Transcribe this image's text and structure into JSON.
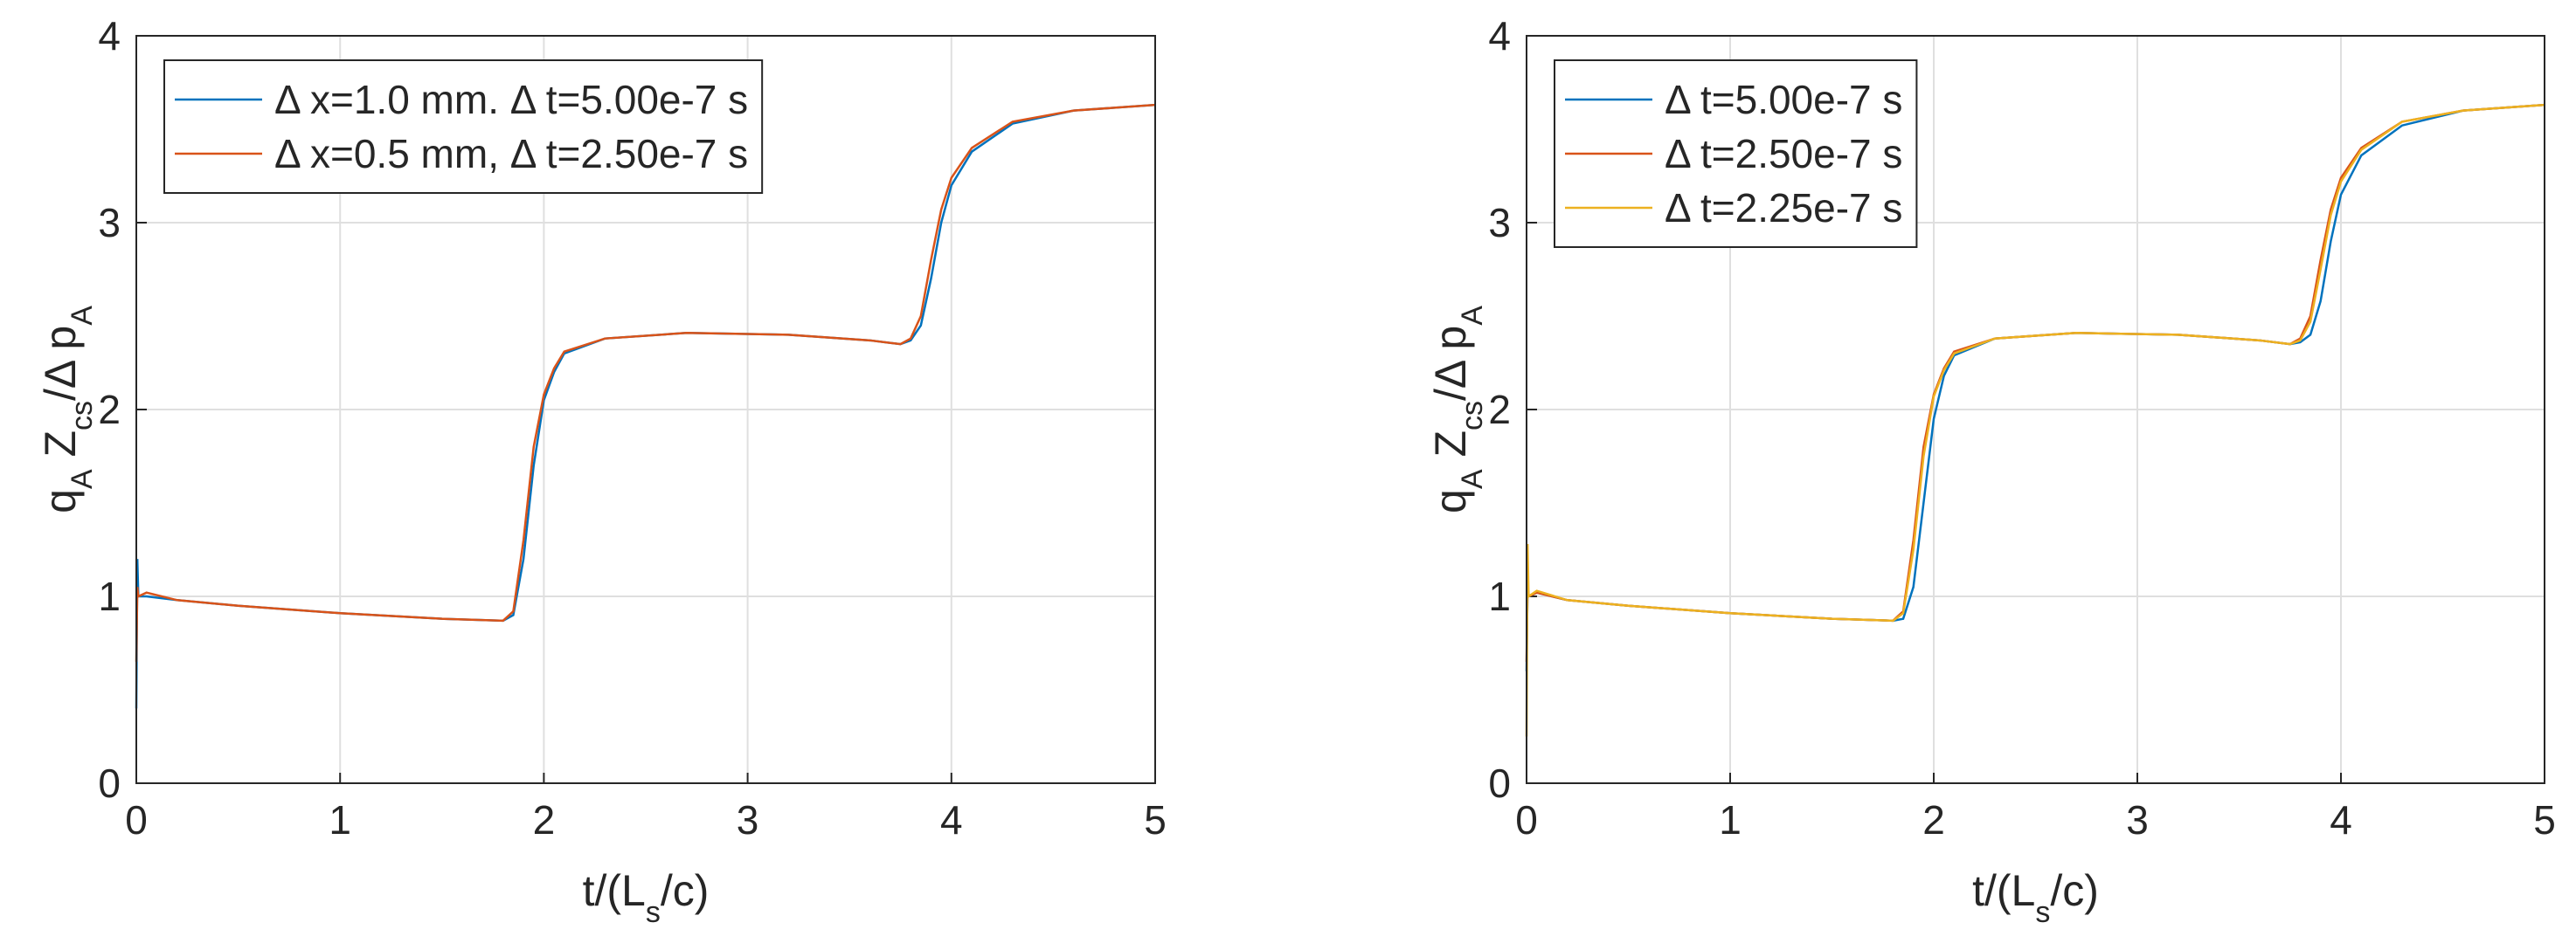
{
  "chart_data": [
    {
      "type": "line",
      "xlabel": [
        "t/(L",
        "s",
        "/c)"
      ],
      "ylabel": [
        "q",
        "A",
        " Z",
        "cs",
        "/Δ p",
        "A"
      ],
      "xlim": [
        0,
        5
      ],
      "ylim": [
        0,
        4
      ],
      "xticks": [
        0,
        1,
        2,
        3,
        4,
        5
      ],
      "yticks": [
        0,
        1,
        2,
        3,
        4
      ],
      "grid": true,
      "legend": "northwest",
      "x": [
        0,
        0.005,
        0.01,
        0.05,
        0.2,
        0.5,
        1.0,
        1.5,
        1.8,
        1.85,
        1.9,
        1.95,
        2.0,
        2.05,
        2.1,
        2.3,
        2.7,
        3.2,
        3.6,
        3.75,
        3.8,
        3.85,
        3.9,
        3.95,
        4.0,
        4.1,
        4.3,
        4.6,
        5.0
      ],
      "series": [
        {
          "name": "Δ x=1.0 mm. Δ t=5.00e-7 s",
          "color": "#0072BD",
          "values": [
            0.4,
            1.2,
            1.0,
            1.0,
            0.98,
            0.95,
            0.91,
            0.88,
            0.87,
            0.9,
            1.2,
            1.7,
            2.05,
            2.2,
            2.3,
            2.38,
            2.41,
            2.4,
            2.37,
            2.35,
            2.37,
            2.45,
            2.7,
            3.0,
            3.2,
            3.38,
            3.53,
            3.6,
            3.63
          ]
        },
        {
          "name": "Δ x=0.5 mm, Δ t=2.50e-7 s",
          "color": "#D95319",
          "values": [
            0.65,
            1.05,
            1.0,
            1.02,
            0.98,
            0.95,
            0.91,
            0.88,
            0.87,
            0.92,
            1.3,
            1.8,
            2.08,
            2.22,
            2.31,
            2.38,
            2.41,
            2.4,
            2.37,
            2.35,
            2.38,
            2.5,
            2.8,
            3.07,
            3.24,
            3.4,
            3.54,
            3.6,
            3.63
          ]
        }
      ]
    },
    {
      "type": "line",
      "xlabel": [
        "t/(L",
        "s",
        "/c)"
      ],
      "ylabel": [
        "q",
        "A",
        " Z",
        "cs",
        "/Δ p",
        "A"
      ],
      "xlim": [
        0,
        5
      ],
      "ylim": [
        0,
        4
      ],
      "xticks": [
        0,
        1,
        2,
        3,
        4,
        5
      ],
      "yticks": [
        0,
        1,
        2,
        3,
        4
      ],
      "grid": true,
      "legend": "northwest",
      "x": [
        0,
        0.005,
        0.01,
        0.05,
        0.2,
        0.5,
        1.0,
        1.5,
        1.8,
        1.85,
        1.9,
        1.95,
        2.0,
        2.05,
        2.1,
        2.3,
        2.7,
        3.2,
        3.6,
        3.75,
        3.8,
        3.85,
        3.9,
        3.95,
        4.0,
        4.1,
        4.3,
        4.6,
        5.0
      ],
      "series": [
        {
          "name": "Δ t=5.00e-7 s",
          "color": "#0072BD",
          "values": [
            0.6,
            1.05,
            1.0,
            1.02,
            0.98,
            0.95,
            0.91,
            0.88,
            0.87,
            0.88,
            1.05,
            1.5,
            1.95,
            2.18,
            2.29,
            2.38,
            2.41,
            2.4,
            2.37,
            2.35,
            2.36,
            2.4,
            2.58,
            2.9,
            3.15,
            3.36,
            3.52,
            3.6,
            3.63
          ]
        },
        {
          "name": "Δ t=2.50e-7 s",
          "color": "#D95319",
          "values": [
            0.65,
            1.05,
            1.0,
            1.02,
            0.98,
            0.95,
            0.91,
            0.88,
            0.87,
            0.92,
            1.3,
            1.8,
            2.08,
            2.22,
            2.31,
            2.38,
            2.41,
            2.4,
            2.37,
            2.35,
            2.38,
            2.5,
            2.8,
            3.07,
            3.24,
            3.4,
            3.54,
            3.6,
            3.63
          ]
        },
        {
          "name": "Δ t=2.25e-7 s",
          "color": "#EDB120",
          "values": [
            0.25,
            1.28,
            1.0,
            1.03,
            0.98,
            0.95,
            0.91,
            0.88,
            0.87,
            0.91,
            1.25,
            1.75,
            2.07,
            2.21,
            2.3,
            2.38,
            2.41,
            2.4,
            2.37,
            2.35,
            2.37,
            2.47,
            2.75,
            3.04,
            3.22,
            3.39,
            3.54,
            3.6,
            3.63
          ]
        }
      ]
    }
  ]
}
